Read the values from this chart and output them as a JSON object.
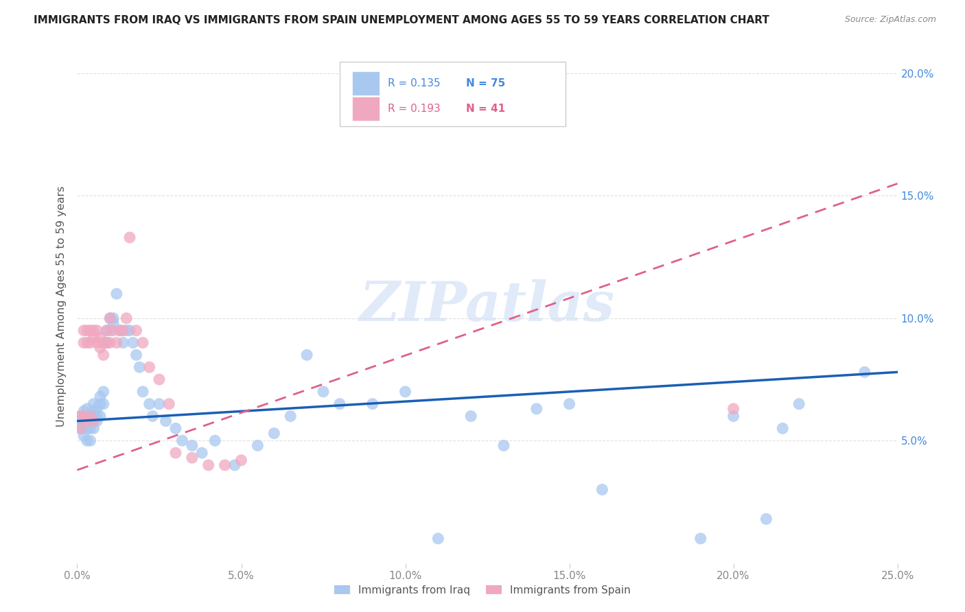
{
  "title": "IMMIGRANTS FROM IRAQ VS IMMIGRANTS FROM SPAIN UNEMPLOYMENT AMONG AGES 55 TO 59 YEARS CORRELATION CHART",
  "source": "Source: ZipAtlas.com",
  "ylabel_label": "Unemployment Among Ages 55 to 59 years",
  "xlim": [
    0.0,
    0.25
  ],
  "ylim": [
    0.0,
    0.21
  ],
  "xticks": [
    0.0,
    0.05,
    0.1,
    0.15,
    0.2,
    0.25
  ],
  "yticks": [
    0.05,
    0.1,
    0.15,
    0.2
  ],
  "xtick_labels": [
    "0.0%",
    "5.0%",
    "10.0%",
    "15.0%",
    "20.0%",
    "25.0%"
  ],
  "ytick_labels": [
    "5.0%",
    "10.0%",
    "15.0%",
    "20.0%"
  ],
  "legend_iraq": "Immigrants from Iraq",
  "legend_spain": "Immigrants from Spain",
  "r_iraq": "0.135",
  "n_iraq": "75",
  "r_spain": "0.193",
  "n_spain": "41",
  "iraq_color": "#a8c8f0",
  "spain_color": "#f0a8c0",
  "iraq_line_color": "#1a5fb4",
  "spain_line_color": "#e0608a",
  "watermark_text": "ZIPatlas",
  "iraq_line": [
    0.0,
    0.25,
    0.058,
    0.078
  ],
  "spain_line": [
    0.0,
    0.25,
    0.038,
    0.155
  ],
  "iraq_x": [
    0.001,
    0.001,
    0.001,
    0.002,
    0.002,
    0.002,
    0.002,
    0.002,
    0.003,
    0.003,
    0.003,
    0.003,
    0.003,
    0.004,
    0.004,
    0.004,
    0.004,
    0.005,
    0.005,
    0.005,
    0.005,
    0.005,
    0.006,
    0.006,
    0.006,
    0.007,
    0.007,
    0.007,
    0.008,
    0.008,
    0.009,
    0.009,
    0.01,
    0.01,
    0.011,
    0.011,
    0.012,
    0.013,
    0.014,
    0.015,
    0.016,
    0.017,
    0.018,
    0.019,
    0.02,
    0.022,
    0.023,
    0.025,
    0.027,
    0.03,
    0.032,
    0.035,
    0.038,
    0.042,
    0.048,
    0.055,
    0.06,
    0.065,
    0.07,
    0.075,
    0.08,
    0.09,
    0.1,
    0.11,
    0.12,
    0.13,
    0.14,
    0.15,
    0.16,
    0.19,
    0.2,
    0.21,
    0.215,
    0.22,
    0.24
  ],
  "iraq_y": [
    0.06,
    0.058,
    0.055,
    0.062,
    0.06,
    0.058,
    0.055,
    0.052,
    0.063,
    0.06,
    0.058,
    0.055,
    0.05,
    0.06,
    0.058,
    0.055,
    0.05,
    0.065,
    0.062,
    0.06,
    0.058,
    0.055,
    0.063,
    0.06,
    0.058,
    0.068,
    0.065,
    0.06,
    0.07,
    0.065,
    0.095,
    0.09,
    0.1,
    0.095,
    0.1,
    0.098,
    0.11,
    0.095,
    0.09,
    0.095,
    0.095,
    0.09,
    0.085,
    0.08,
    0.07,
    0.065,
    0.06,
    0.065,
    0.058,
    0.055,
    0.05,
    0.048,
    0.045,
    0.05,
    0.04,
    0.048,
    0.053,
    0.06,
    0.085,
    0.07,
    0.065,
    0.065,
    0.07,
    0.01,
    0.06,
    0.048,
    0.063,
    0.065,
    0.03,
    0.01,
    0.06,
    0.018,
    0.055,
    0.065,
    0.078
  ],
  "spain_x": [
    0.001,
    0.001,
    0.002,
    0.002,
    0.002,
    0.003,
    0.003,
    0.003,
    0.004,
    0.004,
    0.004,
    0.005,
    0.005,
    0.005,
    0.006,
    0.006,
    0.007,
    0.007,
    0.008,
    0.008,
    0.009,
    0.009,
    0.01,
    0.01,
    0.011,
    0.012,
    0.013,
    0.014,
    0.015,
    0.016,
    0.018,
    0.02,
    0.022,
    0.025,
    0.028,
    0.03,
    0.035,
    0.04,
    0.045,
    0.05,
    0.2
  ],
  "spain_y": [
    0.06,
    0.055,
    0.095,
    0.09,
    0.06,
    0.095,
    0.09,
    0.058,
    0.095,
    0.09,
    0.06,
    0.095,
    0.092,
    0.058,
    0.095,
    0.09,
    0.092,
    0.088,
    0.09,
    0.085,
    0.095,
    0.09,
    0.1,
    0.09,
    0.095,
    0.09,
    0.095,
    0.095,
    0.1,
    0.133,
    0.095,
    0.09,
    0.08,
    0.075,
    0.065,
    0.045,
    0.043,
    0.04,
    0.04,
    0.042,
    0.063
  ],
  "background_color": "#ffffff",
  "grid_color": "#e0e0e0"
}
